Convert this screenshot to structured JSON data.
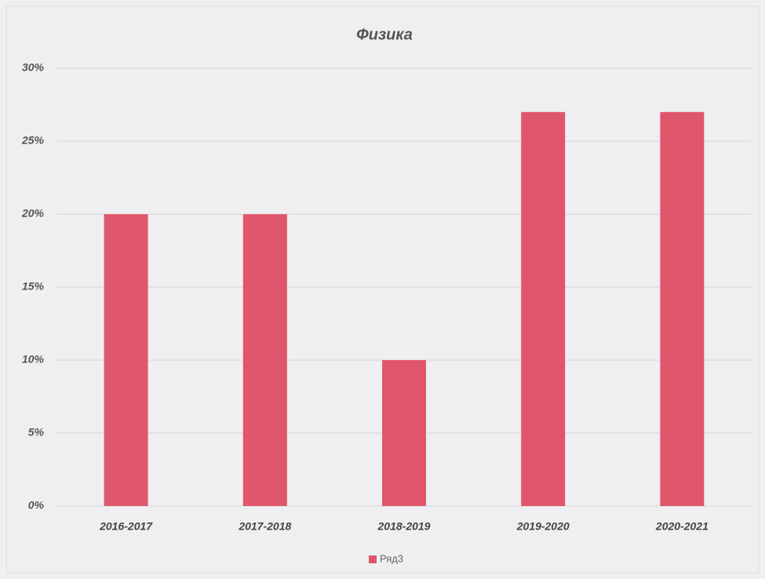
{
  "chart_data": {
    "type": "bar",
    "title": "Физика",
    "categories": [
      "2016-2017",
      "2017-2018",
      "2018-2019",
      "2019-2020",
      "2020-2021"
    ],
    "series": [
      {
        "name": "Ряд3",
        "color": "#e0566c",
        "values": [
          20,
          20,
          10,
          27,
          27
        ]
      }
    ],
    "ylim": [
      0,
      30
    ],
    "yticks": [
      {
        "value": 0,
        "label": "0%"
      },
      {
        "value": 5,
        "label": "5%"
      },
      {
        "value": 10,
        "label": "10%"
      },
      {
        "value": 15,
        "label": "15%"
      },
      {
        "value": 20,
        "label": "20%"
      },
      {
        "value": 25,
        "label": "25%"
      },
      {
        "value": 30,
        "label": "30%"
      }
    ],
    "grid": true,
    "legend": "bottom"
  }
}
